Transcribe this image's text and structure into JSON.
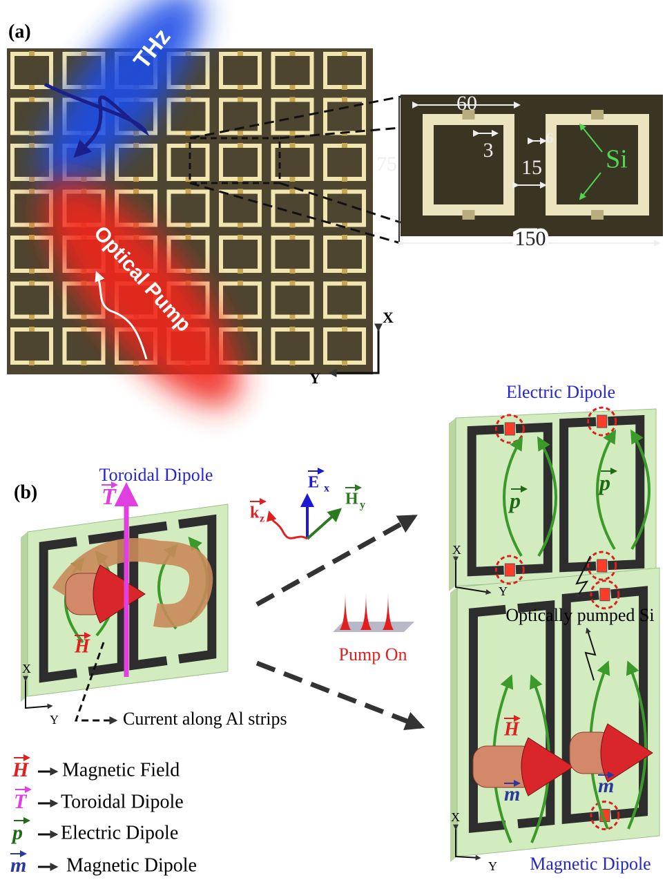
{
  "panel_a": {
    "label": "(a)",
    "thz": "THz",
    "pump": "Optical Pump",
    "axis_x": "X",
    "axis_y": "Y",
    "inset": {
      "width": 60,
      "gap": 3,
      "strip": 6,
      "height": 75,
      "spacing": 15,
      "period": 150,
      "material": "Si"
    }
  },
  "panel_b": {
    "label": "(b)",
    "toroidal_title": "Toroidal Dipole",
    "electric_title": "Electric Dipole",
    "magnetic_title": "Magnetic Dipole",
    "field_E": "E",
    "field_E_sub": "x",
    "field_H": "H",
    "field_H_sub": "y",
    "wave_k": "k",
    "wave_k_sub": "z",
    "axis_x": "X",
    "axis_y": "Y",
    "pump_on": "Pump On",
    "pumped_si": "Optically pumped Si",
    "current": "Current along Al strips",
    "legend": [
      {
        "symbol": "H",
        "text": "Magnetic Field"
      },
      {
        "symbol": "T",
        "text": "Toroidal Dipole"
      },
      {
        "symbol": "p",
        "text": "Electric Dipole"
      },
      {
        "symbol": "m",
        "text": "Magnetic Dipole"
      }
    ]
  }
}
